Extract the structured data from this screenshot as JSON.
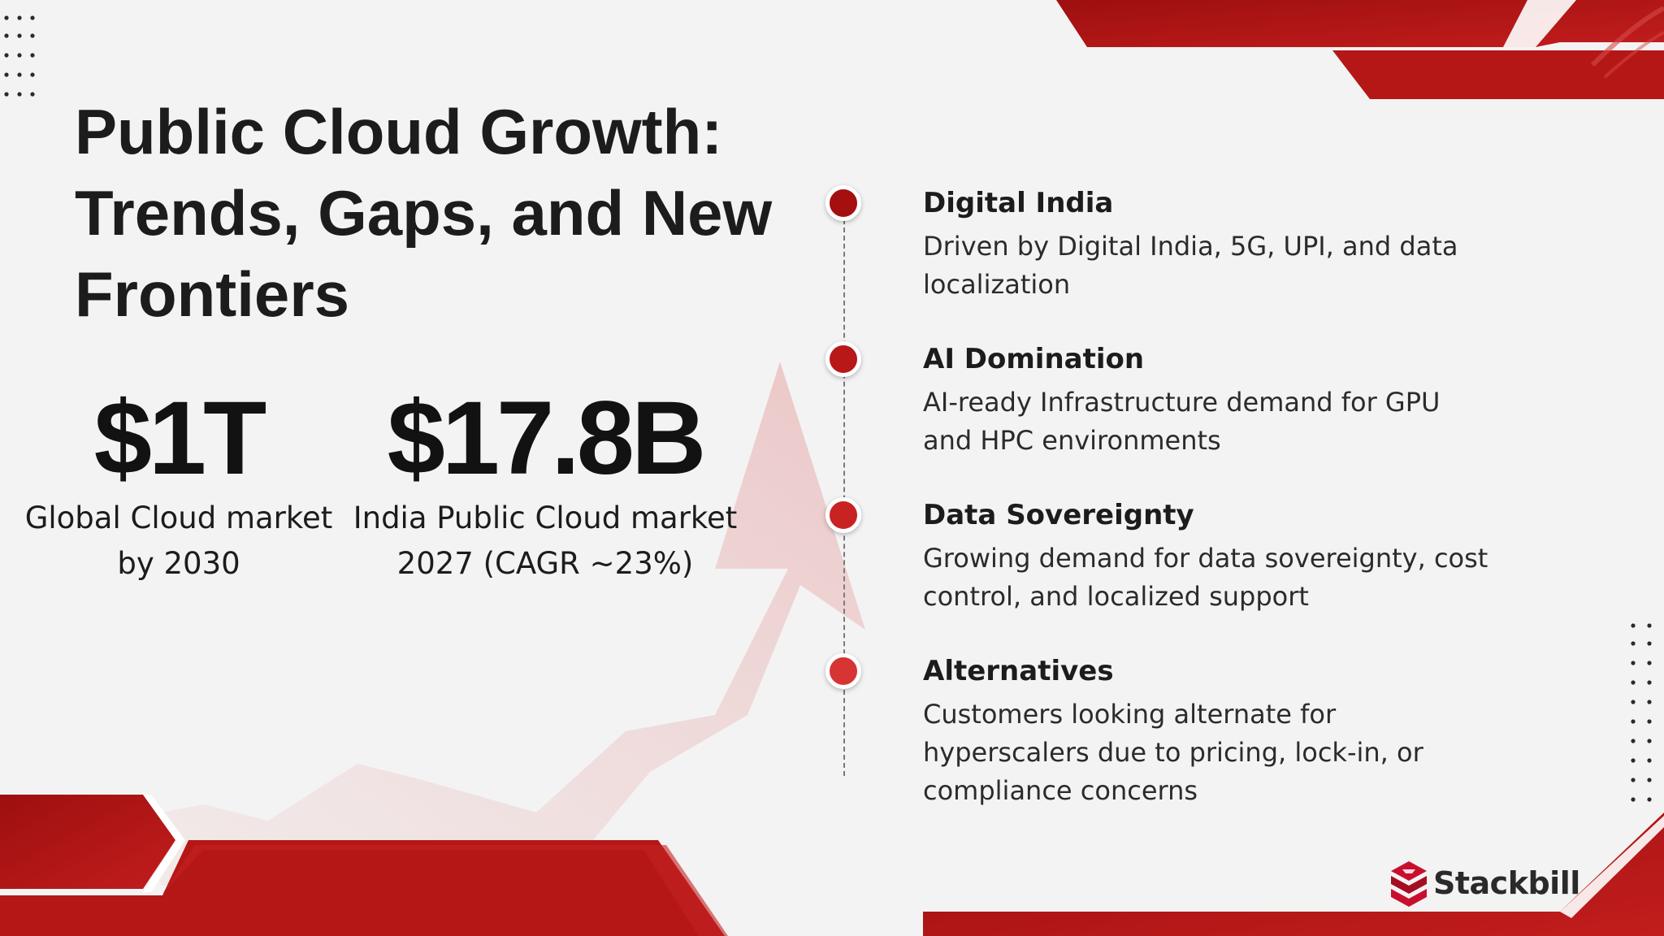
{
  "title": "Public Cloud Growth: Trends, Gaps, and New Frontiers",
  "stats": [
    {
      "value": "$1T",
      "label_line1": "Global Cloud market",
      "label_line2": "by 2030"
    },
    {
      "value": "$17.8B",
      "label_line1": "India Public Cloud market",
      "label_line2": "2027 (CAGR ~23%)"
    }
  ],
  "timeline": [
    {
      "title": "Digital India",
      "desc_line1": "Driven by Digital India, 5G, UPI, and data",
      "desc_line2": "localization",
      "desc_line3": "",
      "dot_color": "#a50f0f"
    },
    {
      "title": "AI Domination",
      "desc_line1": "AI-ready Infrastructure demand for GPU",
      "desc_line2": "and HPC environments",
      "desc_line3": "",
      "dot_color": "#b81818"
    },
    {
      "title": "Data Sovereignty",
      "desc_line1": "Growing demand for data sovereignty, cost",
      "desc_line2": "control, and localized support",
      "desc_line3": "",
      "dot_color": "#c92222"
    },
    {
      "title": "Alternatives",
      "desc_line1": "Customers looking alternate for",
      "desc_line2": "hyperscalers due to pricing, lock-in, or",
      "desc_line3": "compliance concerns",
      "dot_color": "#d73434"
    }
  ],
  "logo": {
    "text": "Stackbill",
    "icon": "stackbill-logo-icon"
  },
  "colors": {
    "accent_dark": "#9e0f0f",
    "accent": "#c21d1d",
    "background": "#f3f3f3"
  }
}
